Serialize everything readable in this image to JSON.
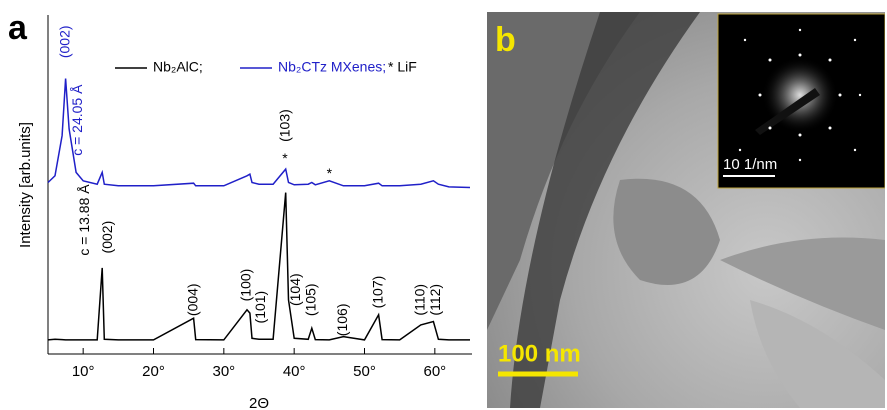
{
  "chart_data": {
    "type": "line",
    "panel_label": "a",
    "x_label": "2Θ",
    "y_label": "Intensity [arb.units]",
    "xlim": [
      5,
      65
    ],
    "ylim": [
      0,
      100
    ],
    "xticks": [
      {
        "value": 10,
        "label": "10°"
      },
      {
        "value": 20,
        "label": "20°"
      },
      {
        "value": 30,
        "label": "30°"
      },
      {
        "value": 40,
        "label": "40°"
      },
      {
        "value": 50,
        "label": "50°"
      },
      {
        "value": 60,
        "label": "60°"
      }
    ],
    "x": [
      5,
      6,
      7,
      7.5,
      8,
      9,
      10,
      12,
      12.7,
      13,
      15,
      20,
      25.7,
      26,
      30,
      33.3,
      33.7,
      34,
      35,
      37,
      38.8,
      39.2,
      40,
      42,
      42.5,
      43,
      45,
      47,
      50,
      52,
      52.5,
      55,
      58,
      59.8,
      60.5,
      62,
      65
    ],
    "series": [
      {
        "name": "Nb₂AlC;",
        "color": "#000000",
        "values": [
          3,
          3.2,
          3.1,
          3,
          3,
          3,
          3,
          3,
          24.5,
          3.2,
          3,
          3,
          9.5,
          3.1,
          3,
          12,
          11,
          3.5,
          3.2,
          3.2,
          47,
          15,
          3.5,
          3.2,
          6.5,
          3.1,
          3,
          4,
          3,
          10.5,
          3.1,
          3,
          7.5,
          8.5,
          3.2,
          3,
          3
        ]
      },
      {
        "name": "Nb₂CTz MXenes;",
        "color": "#2020c8",
        "values": [
          50,
          52,
          64,
          81,
          66,
          53,
          50.5,
          49.5,
          53,
          49.5,
          49,
          49,
          49.8,
          49,
          49,
          52,
          52.5,
          50,
          49.5,
          49.5,
          54,
          50,
          49.3,
          49.5,
          50,
          49.3,
          50.5,
          49,
          49,
          49.8,
          49,
          49,
          49.5,
          50.5,
          49.5,
          48.7,
          48.5
        ]
      }
    ],
    "marker_note": "* LiF",
    "annotations": [
      {
        "text": "(002)",
        "x": 7.5,
        "y": 92,
        "color": "#2020c8",
        "rotate": true
      },
      {
        "text": "c = 24.05 Å",
        "x": 9.3,
        "y": 68.6,
        "color": "#2020c8",
        "rotate": true
      },
      {
        "text": "*",
        "x": 38.7,
        "y": 57,
        "color": "#000000",
        "rotate": false
      },
      {
        "text": "*",
        "x": 45,
        "y": 52.5,
        "color": "#000000",
        "rotate": false
      },
      {
        "text": "c = 13.88 Å",
        "x": 10.3,
        "y": 38.8,
        "color": "#000000",
        "rotate": true
      },
      {
        "text": "(002)",
        "x": 13.6,
        "y": 33.7,
        "color": "#000000",
        "rotate": true
      },
      {
        "text": "(004)",
        "x": 25.7,
        "y": 15,
        "color": "#000000",
        "rotate": true
      },
      {
        "text": "(100)",
        "x": 33.3,
        "y": 19.4,
        "color": "#000000",
        "rotate": true
      },
      {
        "text": "(101)",
        "x": 35.3,
        "y": 12.8,
        "color": "#000000",
        "rotate": true
      },
      {
        "text": "(103)",
        "x": 38.8,
        "y": 67,
        "color": "#000000",
        "rotate": true
      },
      {
        "text": "(104)",
        "x": 40.3,
        "y": 18,
        "color": "#000000",
        "rotate": true
      },
      {
        "text": "(105)",
        "x": 42.5,
        "y": 15,
        "color": "#000000",
        "rotate": true
      },
      {
        "text": "(106)",
        "x": 47,
        "y": 9,
        "color": "#000000",
        "rotate": true
      },
      {
        "text": "(107)",
        "x": 52,
        "y": 17.3,
        "color": "#000000",
        "rotate": true
      },
      {
        "text": "(110)",
        "x": 58,
        "y": 15,
        "color": "#000000",
        "rotate": true
      },
      {
        "text": "(112)",
        "x": 60.2,
        "y": 15,
        "color": "#000000",
        "rotate": true
      }
    ]
  },
  "panel_b": {
    "label": "b",
    "scale_bar": "100 nm",
    "inset_scale": "10 1/nm"
  }
}
